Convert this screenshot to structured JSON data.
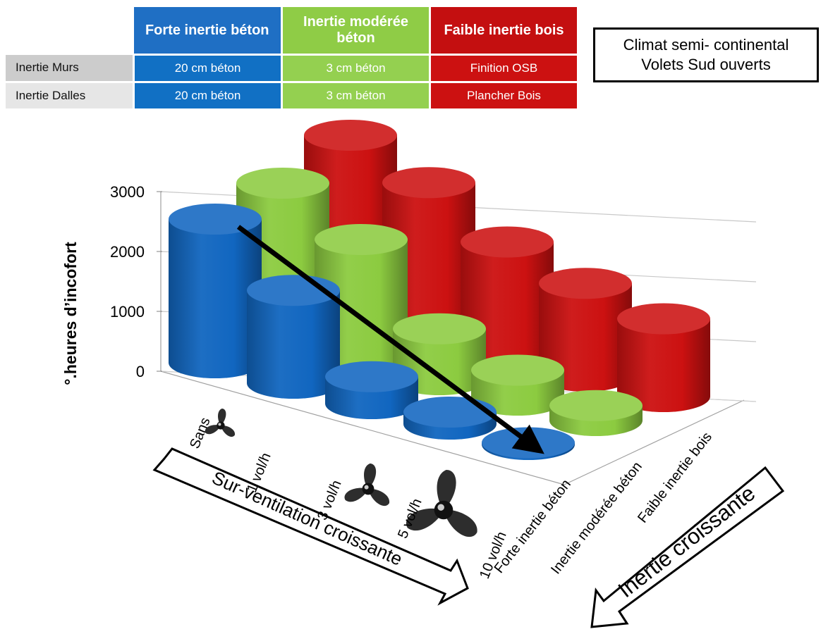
{
  "legend_table": {
    "headers": [
      "Forte inertie béton",
      "Inertie modérée béton",
      "Faible inertie bois"
    ],
    "header_colors": [
      "#1f6fc4",
      "#8fcc46",
      "#c40f10"
    ],
    "cell_colors": [
      "#1170c4",
      "#94d050",
      "#cc1111"
    ],
    "rows": [
      {
        "label": "Inertie Murs",
        "label_bg": "#cccccc",
        "cells": [
          "20 cm béton",
          "3 cm béton",
          "Finition OSB"
        ]
      },
      {
        "label": "Inertie Dalles",
        "label_bg": "#e6e6e6",
        "cells": [
          "20 cm béton",
          "3 cm béton",
          "Plancher Bois"
        ]
      }
    ]
  },
  "climate_box": {
    "line1": "Climat semi- continental",
    "line2": "Volets Sud ouverts"
  },
  "ventilation_arrow_label": "Sur-ventilation croissante",
  "inertia_arrow_label": "Inertie croissante",
  "chart_data": {
    "type": "bar",
    "style": "3d-cylinder",
    "ylabel": "°.heures d’incofort",
    "yticks": [
      "0",
      "1000",
      "2000",
      "3000"
    ],
    "ylim": [
      0,
      3000
    ],
    "categories": [
      "Sans",
      "1 vol/h",
      "3 vol/h",
      "5 vol/h",
      "10 vol/h"
    ],
    "series": [
      {
        "name": "Forte inertie béton",
        "color": "#1166c0",
        "values": [
          2400,
          1550,
          450,
          200,
          30
        ]
      },
      {
        "name": "Inertie modérée béton",
        "color": "#8ccb40",
        "values": [
          2600,
          2000,
          850,
          500,
          250
        ]
      },
      {
        "name": "Faible inertie bois",
        "color": "#cc1111",
        "values": [
          3000,
          2550,
          1900,
          1550,
          1300
        ]
      }
    ],
    "grid": true,
    "trend_arrow": true,
    "fan_icons": [
      "fan-icon-small",
      "fan-icon-medium",
      "fan-icon-large"
    ]
  }
}
